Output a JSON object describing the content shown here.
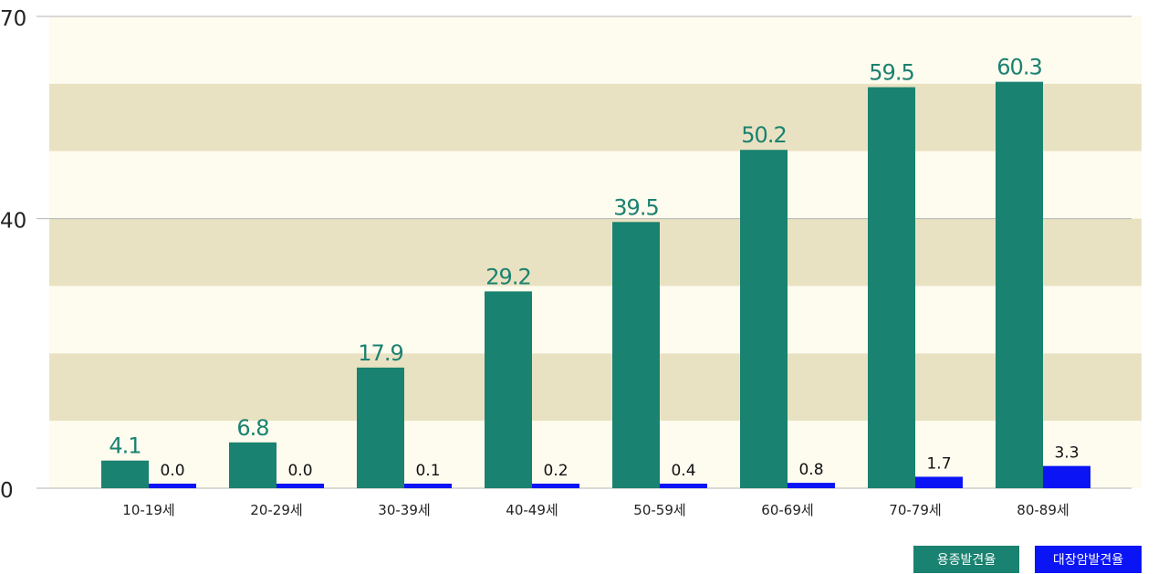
{
  "chart_data": {
    "type": "bar",
    "categories": [
      "10-19세",
      "20-29세",
      "30-39세",
      "40-49세",
      "50-59세",
      "60-69세",
      "70-79세",
      "80-89세"
    ],
    "series": [
      {
        "name": "용종발견율",
        "values": [
          4.1,
          6.8,
          17.9,
          29.2,
          39.5,
          50.2,
          59.5,
          60.3
        ],
        "color": "#1a8270"
      },
      {
        "name": "대장암발견율",
        "values": [
          0.0,
          0.0,
          0.1,
          0.2,
          0.4,
          0.8,
          1.7,
          3.3
        ],
        "color": "#0a14f5"
      }
    ],
    "y_ticks": [
      0,
      40,
      70
    ],
    "ylim": [
      0,
      70
    ],
    "grid": true,
    "legend_position": "bottom-right",
    "band_colors": [
      "#fefbef",
      "#e9e2c2"
    ]
  }
}
